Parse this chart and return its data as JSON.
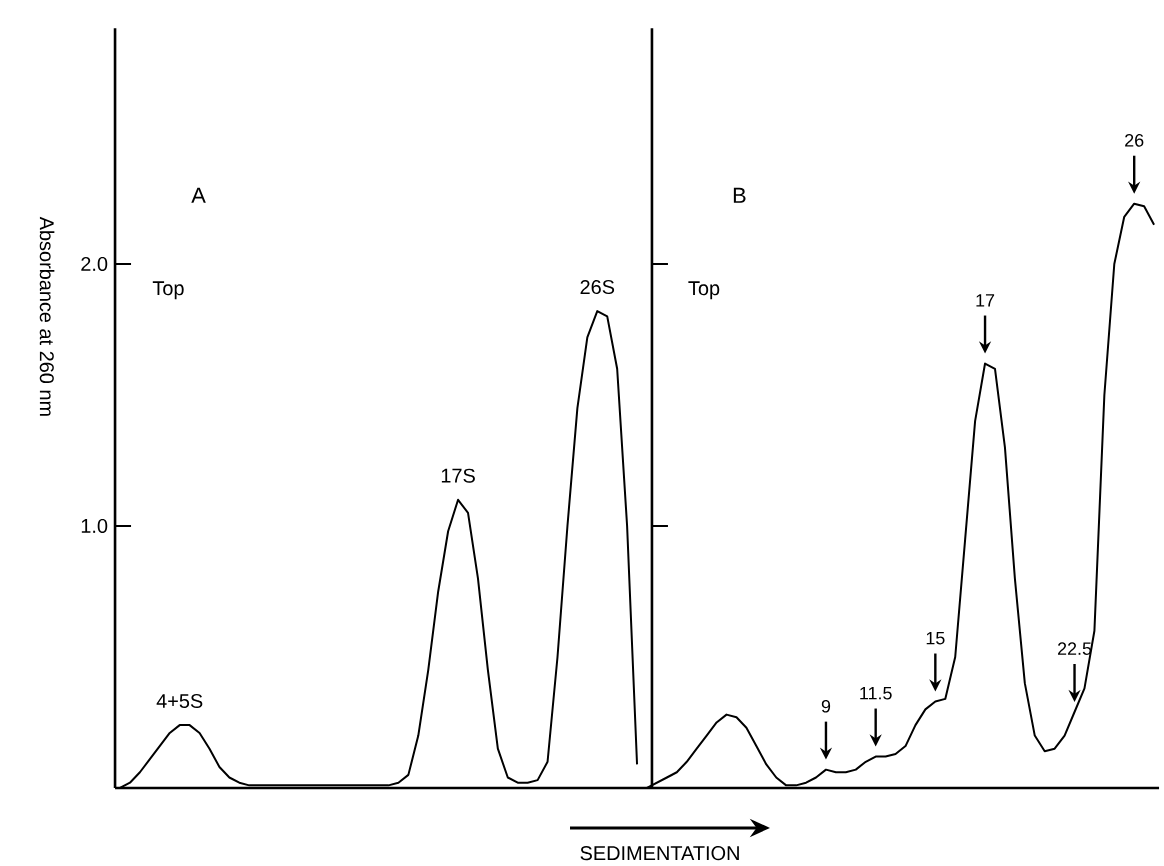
{
  "chart_data": {
    "type": "line",
    "xlabel": "SEDIMENTATION",
    "ylabel": "Absorbance at 260 nm",
    "categories": [
      null,
      null,
      null,
      null,
      null,
      null,
      null,
      null,
      null,
      null,
      null,
      null,
      null,
      null,
      null,
      null,
      null,
      null,
      null,
      null,
      null,
      null,
      null,
      null,
      null,
      null,
      null,
      null,
      null,
      null,
      null,
      null,
      null,
      null,
      null,
      null,
      null,
      null,
      null,
      null,
      null,
      null,
      null,
      null,
      null,
      null,
      null,
      null,
      null,
      null,
      null,
      null,
      null,
      null,
      null,
      null,
      null,
      null,
      null,
      null,
      null,
      null,
      null,
      null,
      null,
      null,
      null,
      null,
      null,
      null,
      null,
      null,
      null,
      null,
      null,
      null,
      null,
      null,
      null,
      null,
      null,
      null,
      null,
      null,
      null,
      null,
      null,
      null,
      null,
      null,
      null,
      null,
      null,
      null,
      null,
      null,
      null,
      null,
      null,
      null,
      null,
      null,
      null,
      null,
      null
    ],
    "series": [
      {
        "color": "#000000",
        "values": [
          0,
          0.02,
          0.06,
          0.11,
          0.16,
          0.21,
          0.24,
          0.24,
          0.21,
          0.15,
          0.08,
          0.04,
          0.02,
          0.01,
          0.01,
          0.01,
          0.01,
          0.01,
          0.01,
          0.01,
          0.01,
          0.01,
          0.01,
          0.01,
          0.01,
          0.01,
          0.01,
          0.01,
          0.02,
          0.05,
          0.2,
          0.45,
          0.75,
          0.98,
          1.1,
          1.05,
          0.8,
          0.45,
          0.15,
          0.04,
          0.02,
          0.02,
          0.03,
          0.1,
          0.5,
          1.0,
          1.45,
          1.72,
          1.82,
          1.8,
          1.6,
          1.0,
          0.09,
          null,
          null,
          null,
          null,
          null,
          null,
          null,
          null,
          null,
          null,
          null,
          null,
          null,
          null,
          null,
          null,
          null,
          null,
          null,
          null,
          null,
          null,
          null,
          null,
          null,
          null,
          null,
          null,
          null,
          null,
          null,
          null,
          null,
          null,
          null,
          null,
          null,
          null,
          null,
          null,
          null,
          null,
          null,
          null,
          null,
          null,
          null,
          null,
          null,
          null,
          null,
          null
        ]
      },
      {
        "color": "#000000",
        "values": [
          null,
          null,
          null,
          null,
          null,
          null,
          null,
          null,
          null,
          null,
          null,
          null,
          null,
          null,
          null,
          null,
          null,
          null,
          null,
          null,
          null,
          null,
          null,
          null,
          null,
          null,
          null,
          null,
          null,
          null,
          null,
          null,
          null,
          null,
          null,
          null,
          null,
          null,
          null,
          null,
          null,
          null,
          null,
          null,
          null,
          null,
          null,
          null,
          null,
          null,
          null,
          null,
          null,
          0,
          0.02,
          0.04,
          0.06,
          0.1,
          0.15,
          0.2,
          0.25,
          0.28,
          0.27,
          0.23,
          0.16,
          0.09,
          0.04,
          0.01,
          0.01,
          0.02,
          0.04,
          0.07,
          0.06,
          0.06,
          0.07,
          0.1,
          0.12,
          0.12,
          0.13,
          0.16,
          0.24,
          0.3,
          0.33,
          0.34,
          0.5,
          0.95,
          1.4,
          1.62,
          1.6,
          1.3,
          0.8,
          0.4,
          0.2,
          0.14,
          0.15,
          0.2,
          0.29,
          0.38,
          0.6,
          1.5,
          2.0,
          2.18,
          2.23,
          2.22,
          2.15
        ]
      }
    ],
    "ylim": [
      0,
      2.9
    ],
    "yticks": [
      {
        "value": 1,
        "label": "1.0"
      },
      {
        "value": 2,
        "label": "2.0"
      }
    ],
    "annotations": [
      "A",
      "Top",
      "B",
      "Top",
      {
        "text": "4+5S",
        "y": 0.24
      },
      {
        "text": "17S",
        "y": 1.1
      },
      {
        "text": "26S",
        "y": 1.82
      },
      {
        "text": "9",
        "y": 0.07
      },
      {
        "text": "11.5",
        "y": 0.12
      },
      {
        "text": "15",
        "y": 0.33
      },
      {
        "text": "17",
        "y": 1.62
      },
      {
        "text": "22.5",
        "y": 0.29
      },
      {
        "text": "26",
        "y": 2.23
      }
    ]
  }
}
